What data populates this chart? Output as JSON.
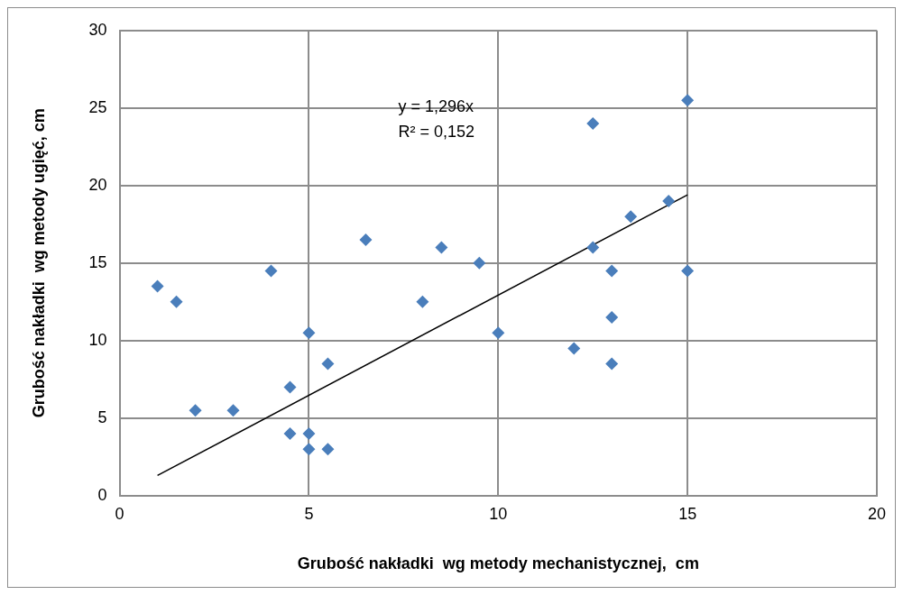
{
  "chart_data": {
    "type": "scatter",
    "xlabel": "Grubość nakładki  wg metody mechanistycznej,  cm",
    "ylabel": "Grubość nakładki  wg metody ugięć, cm",
    "series": [
      {
        "color": "#4a7ebb",
        "marker": "diamond",
        "x": [
          1,
          1.5,
          2,
          3,
          4,
          4.5,
          4.5,
          5,
          5,
          5,
          5.5,
          5.5,
          6.5,
          8,
          8.5,
          9.5,
          10,
          12,
          12.5,
          12.5,
          13,
          13,
          13,
          13.5,
          14.5,
          15,
          15
        ],
        "values": [
          13.5,
          12.5,
          5.5,
          5.5,
          14.5,
          7,
          4,
          10.5,
          4,
          3,
          8.5,
          3,
          16.5,
          12.5,
          16,
          15,
          10.5,
          9.5,
          24,
          16,
          14.5,
          11.5,
          8.5,
          18,
          19,
          25.5,
          14.5
        ]
      },
      {
        "type": "line",
        "color": "#000000",
        "marker": "none",
        "x": [
          1,
          15
        ],
        "values": [
          1.3,
          19.4
        ]
      }
    ],
    "annotations": [
      "y = 1,296x",
      "R² = 0,152"
    ],
    "xlim": [
      0,
      20
    ],
    "xticks": [
      0,
      5,
      10,
      15,
      20
    ],
    "ylim": [
      0,
      30
    ],
    "yticks": [
      0,
      5,
      10,
      15,
      20,
      25,
      30
    ],
    "grid": true,
    "legend": false
  }
}
